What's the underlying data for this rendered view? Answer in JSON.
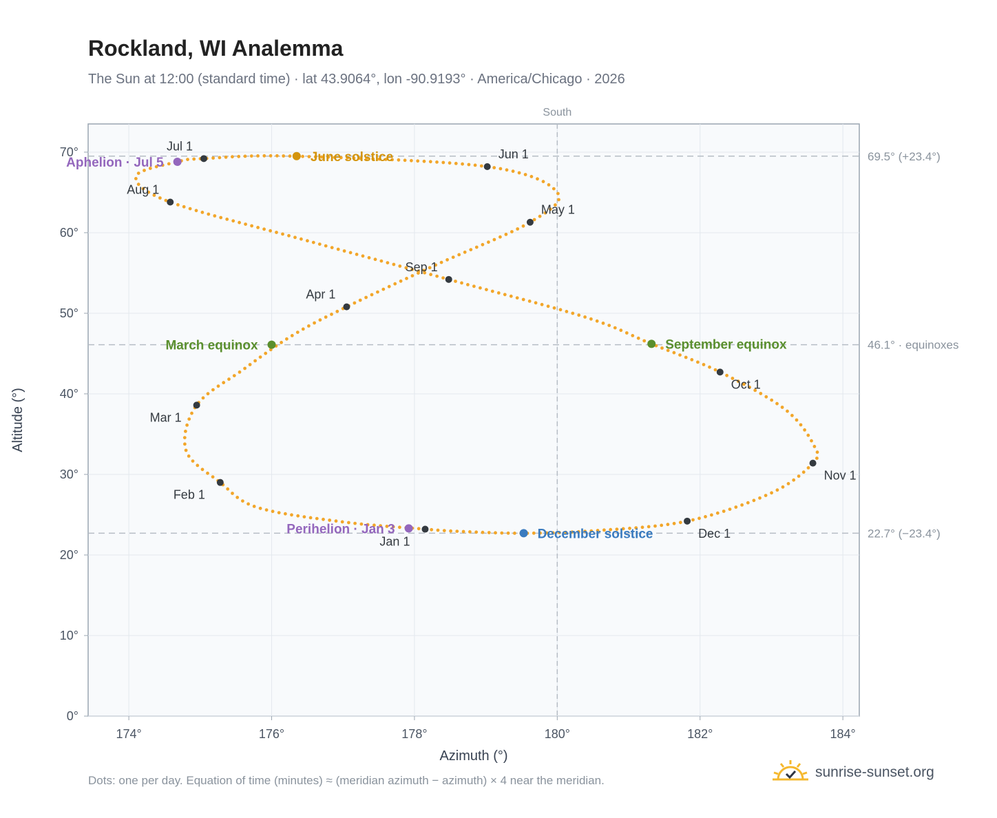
{
  "header": {
    "title": "Rockland, WI Analemma",
    "subtitle": "The Sun at 12:00 (standard time) · lat 43.9064°, lon -90.9193° · America/Chicago · 2026"
  },
  "footer": {
    "note": "Dots: one per day. Equation of time (minutes) ≈ (meridian azimuth − azimuth) × 4 near the meridian.",
    "brand": "sunrise-sunset.org",
    "brand_icon": "sun-logo-icon"
  },
  "colors": {
    "path": "#f2a62a",
    "month_marker": "#343a40",
    "solstice_june": "#d4940c",
    "solstice_december": "#3a7bbf",
    "equinox": "#5a8f2e",
    "apsis": "#9467bd",
    "plot_bg": "#f8fafc",
    "grid": "#e3e8ee",
    "axis": "#9aa5b1",
    "ref_line": "#b6bdc5"
  },
  "chart_data": {
    "type": "scatter",
    "title": "Rockland, WI Analemma",
    "xlabel": "Azimuth (°)",
    "ylabel": "Altitude (°)",
    "xlim": [
      173.43,
      184.23
    ],
    "ylim": [
      0,
      73.5
    ],
    "xticks": [
      174,
      176,
      178,
      180,
      182,
      184
    ],
    "xtick_labels": [
      "174°",
      "176°",
      "178°",
      "180°",
      "182°",
      "184°"
    ],
    "yticks": [
      0,
      10,
      20,
      30,
      40,
      50,
      60,
      70
    ],
    "ytick_labels": [
      "0°",
      "10°",
      "20°",
      "30°",
      "40°",
      "50°",
      "60°",
      "70°"
    ],
    "grid": true,
    "meridian": {
      "azimuth": 180,
      "label": "South"
    },
    "reference_lines": [
      {
        "altitude": 69.5,
        "label": "69.5° (+23.4°)"
      },
      {
        "altitude": 46.1,
        "label": "46.1° · equinoxes"
      },
      {
        "altitude": 22.7,
        "label": "22.7° (−23.4°)"
      }
    ],
    "path_anchors": [
      {
        "az": 178.15,
        "alt": 23.2
      },
      {
        "az": 177.0,
        "alt": 24.1
      },
      {
        "az": 175.8,
        "alt": 25.9
      },
      {
        "az": 175.28,
        "alt": 29.0
      },
      {
        "az": 174.8,
        "alt": 33.0
      },
      {
        "az": 174.95,
        "alt": 38.6
      },
      {
        "az": 175.6,
        "alt": 43.0
      },
      {
        "az": 176.3,
        "alt": 47.3
      },
      {
        "az": 177.05,
        "alt": 50.8
      },
      {
        "az": 178.3,
        "alt": 56.0
      },
      {
        "az": 179.62,
        "alt": 61.3
      },
      {
        "az": 180.0,
        "alt": 65.0
      },
      {
        "az": 179.02,
        "alt": 68.2
      },
      {
        "az": 176.3,
        "alt": 69.5
      },
      {
        "az": 175.05,
        "alt": 69.2
      },
      {
        "az": 174.68,
        "alt": 68.8
      },
      {
        "az": 174.1,
        "alt": 67.0
      },
      {
        "az": 174.58,
        "alt": 63.8
      },
      {
        "az": 176.5,
        "alt": 59.0
      },
      {
        "az": 178.48,
        "alt": 54.2
      },
      {
        "az": 180.4,
        "alt": 49.5
      },
      {
        "az": 181.32,
        "alt": 46.2
      },
      {
        "az": 182.28,
        "alt": 42.7
      },
      {
        "az": 183.2,
        "alt": 38.0
      },
      {
        "az": 183.6,
        "alt": 33.5
      },
      {
        "az": 183.58,
        "alt": 31.4
      },
      {
        "az": 183.0,
        "alt": 27.7
      },
      {
        "az": 181.82,
        "alt": 24.2
      },
      {
        "az": 180.5,
        "alt": 23.0
      },
      {
        "az": 179.53,
        "alt": 22.7
      },
      {
        "az": 178.7,
        "alt": 22.9
      },
      {
        "az": 178.15,
        "alt": 23.2
      }
    ],
    "month_markers": [
      {
        "label": "Jan 1",
        "az": 178.15,
        "alt": 23.2,
        "pos": "below-left"
      },
      {
        "label": "Feb 1",
        "az": 175.28,
        "alt": 29.0,
        "pos": "below-left"
      },
      {
        "label": "Mar 1",
        "az": 174.95,
        "alt": 38.6,
        "pos": "below-left"
      },
      {
        "label": "Apr 1",
        "az": 177.05,
        "alt": 50.8,
        "pos": "above-left"
      },
      {
        "label": "May 1",
        "az": 179.62,
        "alt": 61.3,
        "pos": "above-right"
      },
      {
        "label": "Jun 1",
        "az": 179.02,
        "alt": 68.2,
        "pos": "above-right"
      },
      {
        "label": "Jul 1",
        "az": 175.05,
        "alt": 69.2,
        "pos": "above-left"
      },
      {
        "label": "Aug 1",
        "az": 174.58,
        "alt": 63.8,
        "pos": "above-left"
      },
      {
        "label": "Sep 1",
        "az": 178.48,
        "alt": 54.2,
        "pos": "above-left"
      },
      {
        "label": "Oct 1",
        "az": 182.28,
        "alt": 42.7,
        "pos": "below-right"
      },
      {
        "label": "Nov 1",
        "az": 183.58,
        "alt": 31.4,
        "pos": "below-right"
      },
      {
        "label": "Dec 1",
        "az": 181.82,
        "alt": 24.2,
        "pos": "below-right"
      }
    ],
    "events": [
      {
        "label": "June solstice",
        "az": 176.35,
        "alt": 69.5,
        "color": "#d4940c",
        "pos": "right"
      },
      {
        "label": "December solstice",
        "az": 179.53,
        "alt": 22.7,
        "color": "#3a7bbf",
        "pos": "right"
      },
      {
        "label": "March equinox",
        "az": 176.0,
        "alt": 46.1,
        "color": "#5a8f2e",
        "pos": "left"
      },
      {
        "label": "September equinox",
        "az": 181.32,
        "alt": 46.2,
        "color": "#5a8f2e",
        "pos": "right"
      },
      {
        "label": "Aphelion · Jul 5",
        "az": 174.68,
        "alt": 68.8,
        "color": "#9467bd",
        "pos": "left"
      },
      {
        "label": "Perihelion · Jan 3",
        "az": 177.92,
        "alt": 23.3,
        "color": "#9467bd",
        "pos": "left"
      }
    ]
  }
}
